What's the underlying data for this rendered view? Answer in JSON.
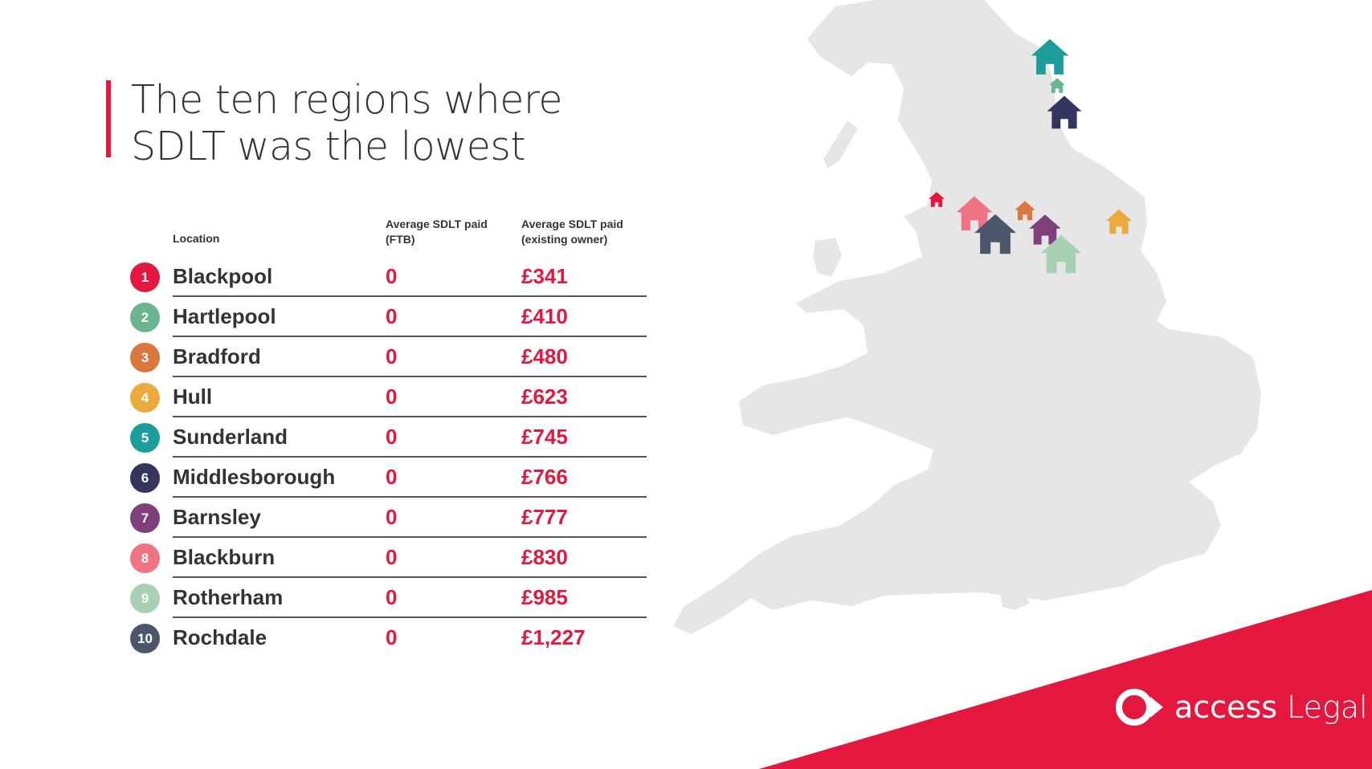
{
  "title": {
    "line1": "The ten regions where",
    "line2": "SDLT was the lowest"
  },
  "table": {
    "headers": {
      "location": "Location",
      "ftb_line1": "Average SDLT paid",
      "ftb_line2": "(FTB)",
      "owner_line1": "Average SDLT paid",
      "owner_line2": "(existing owner)"
    },
    "rows": [
      {
        "rank": "1",
        "location": "Blackpool",
        "ftb": "0",
        "owner": "£341",
        "color": "#e4173e"
      },
      {
        "rank": "2",
        "location": "Hartlepool",
        "ftb": "0",
        "owner": "£410",
        "color": "#6bb58f"
      },
      {
        "rank": "3",
        "location": "Bradford",
        "ftb": "0",
        "owner": "£480",
        "color": "#d9773f"
      },
      {
        "rank": "4",
        "location": "Hull",
        "ftb": "0",
        "owner": "£623",
        "color": "#eaaa3c"
      },
      {
        "rank": "5",
        "location": "Sunderland",
        "ftb": "0",
        "owner": "£745",
        "color": "#1c9c9a"
      },
      {
        "rank": "6",
        "location": "Middlesborough",
        "ftb": "0",
        "owner": "£766",
        "color": "#35365f"
      },
      {
        "rank": "7",
        "location": "Barnsley",
        "ftb": "0",
        "owner": "£777",
        "color": "#7f3f7c"
      },
      {
        "rank": "8",
        "location": "Blackburn",
        "ftb": "0",
        "owner": "£830",
        "color": "#ef7382"
      },
      {
        "rank": "9",
        "location": "Rotherham",
        "ftb": "0",
        "owner": "£985",
        "color": "#a9cfb5"
      },
      {
        "rank": "10",
        "location": "Rochdale",
        "ftb": "0",
        "owner": "£1,227",
        "color": "#4c566a"
      }
    ]
  },
  "map": {
    "land_color": "#e6e6e6",
    "markers": [
      {
        "icon": "house-icon",
        "color": "#1c9c9a"
      },
      {
        "icon": "house-icon",
        "color": "#6bb58f"
      },
      {
        "icon": "house-icon",
        "color": "#35365f"
      },
      {
        "icon": "house-icon",
        "color": "#e4173e"
      },
      {
        "icon": "house-icon",
        "color": "#ef7382"
      },
      {
        "icon": "house-icon",
        "color": "#d9773f"
      },
      {
        "icon": "house-icon",
        "color": "#4c566a"
      },
      {
        "icon": "house-icon",
        "color": "#7f3f7c"
      },
      {
        "icon": "house-icon",
        "color": "#a9cfb5"
      },
      {
        "icon": "house-icon",
        "color": "#eaaa3c"
      }
    ]
  },
  "brand": {
    "name_bold": "access",
    "name_light": "Legal",
    "accent_color": "#e4173e"
  }
}
